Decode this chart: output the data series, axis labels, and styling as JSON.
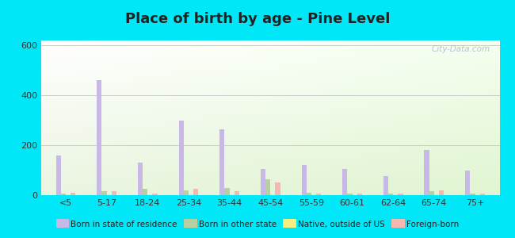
{
  "title": "Place of birth by age - Pine Level",
  "categories": [
    "<5",
    "5-17",
    "18-24",
    "25-34",
    "35-44",
    "45-54",
    "55-59",
    "60-61",
    "62-64",
    "65-74",
    "75+"
  ],
  "series": {
    "Born in state of residence": [
      160,
      460,
      130,
      300,
      265,
      105,
      120,
      105,
      75,
      180,
      100
    ],
    "Born in other state": [
      5,
      15,
      25,
      20,
      30,
      65,
      10,
      5,
      5,
      15,
      5
    ],
    "Native, outside of US": [
      2,
      2,
      2,
      2,
      2,
      2,
      2,
      2,
      2,
      2,
      2
    ],
    "Foreign-born": [
      10,
      15,
      5,
      25,
      15,
      50,
      5,
      5,
      5,
      20,
      5
    ]
  },
  "colors": {
    "Born in state of residence": "#c8b8e8",
    "Born in other state": "#b8d0a0",
    "Native, outside of US": "#f5ee80",
    "Foreign-born": "#f5b8b0"
  },
  "ylim": [
    0,
    620
  ],
  "yticks": [
    0,
    200,
    400,
    600
  ],
  "fig_background": "#00e8f8",
  "bar_width": 0.12,
  "legend_fontsize": 8,
  "title_fontsize": 13,
  "title_color": "#222222",
  "watermark": "City-Data.com",
  "watermark_color": "#aabbcc"
}
